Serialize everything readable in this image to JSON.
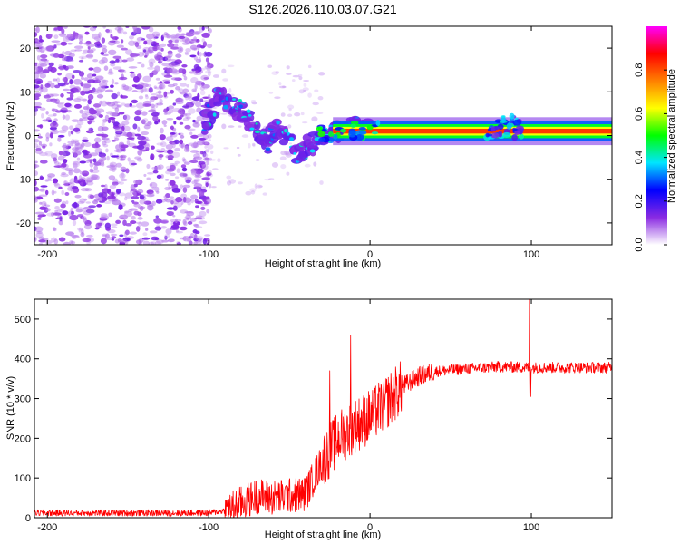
{
  "title": "S126.2026.110.03.07.G21",
  "chart_data": [
    {
      "type": "heatmap",
      "xlabel": "Height of straight line (km)",
      "ylabel": "Frequency (Hz)",
      "xlim": [
        -208,
        150
      ],
      "ylim": [
        -25,
        25
      ],
      "xticks": [
        -200,
        -100,
        0,
        100
      ],
      "yticks": [
        -20,
        -10,
        0,
        10,
        20
      ],
      "colorbar": {
        "label": "Normalized spectral amplitude",
        "range": [
          0,
          1
        ],
        "ticks": [
          "0.0",
          "0.2",
          "0.4",
          "0.6",
          "0.8"
        ],
        "colors": [
          "#ffffff",
          "#8a2be2",
          "#0000ff",
          "#00e5ff",
          "#00ff00",
          "#ffff00",
          "#ff8000",
          "#ff0000",
          "#ff00ff"
        ]
      },
      "features": {
        "noise_region_km": [
          -208,
          -105
        ],
        "transition_region_km": [
          -105,
          -30
        ],
        "stable_tone_start_km": -35,
        "stable_tone_frequency_hz": 1.0,
        "drift_path": [
          {
            "x": -103,
            "f": 2
          },
          {
            "x": -95,
            "f": 9
          },
          {
            "x": -85,
            "f": 7
          },
          {
            "x": -75,
            "f": 4
          },
          {
            "x": -65,
            "f": -2
          },
          {
            "x": -55,
            "f": 2
          },
          {
            "x": -45,
            "f": -4
          },
          {
            "x": -38,
            "f": -2
          },
          {
            "x": -30,
            "f": 0
          },
          {
            "x": -20,
            "f": 1
          },
          {
            "x": -10,
            "f": 2
          },
          {
            "x": 0,
            "f": 1
          }
        ],
        "secondary_blob_km": [
          72,
          95
        ]
      }
    },
    {
      "type": "line",
      "xlabel": "Height of straight line (km)",
      "ylabel": "SNR (10 * v/v)",
      "xlim": [
        -208,
        150
      ],
      "ylim": [
        0,
        550
      ],
      "xticks": [
        -200,
        -100,
        0,
        100
      ],
      "yticks": [
        0,
        100,
        200,
        300,
        400,
        500
      ],
      "color": "#ff0000",
      "profile": [
        {
          "x": -208,
          "y": 12
        },
        {
          "x": -100,
          "y": 12
        },
        {
          "x": -90,
          "y": 18
        },
        {
          "x": -80,
          "y": 35
        },
        {
          "x": -70,
          "y": 55
        },
        {
          "x": -60,
          "y": 50
        },
        {
          "x": -50,
          "y": 55
        },
        {
          "x": -40,
          "y": 60
        },
        {
          "x": -30,
          "y": 140
        },
        {
          "x": -20,
          "y": 200
        },
        {
          "x": -10,
          "y": 230
        },
        {
          "x": 0,
          "y": 255
        },
        {
          "x": 10,
          "y": 290
        },
        {
          "x": 20,
          "y": 330
        },
        {
          "x": 30,
          "y": 355
        },
        {
          "x": 40,
          "y": 368
        },
        {
          "x": 60,
          "y": 375
        },
        {
          "x": 80,
          "y": 380
        },
        {
          "x": 100,
          "y": 378
        },
        {
          "x": 150,
          "y": 378
        }
      ],
      "spikes": [
        {
          "x": -25,
          "y": 370
        },
        {
          "x": -12,
          "y": 460
        },
        {
          "x": 99,
          "y": 550
        },
        {
          "x": 99.6,
          "y": 305
        }
      ]
    }
  ]
}
